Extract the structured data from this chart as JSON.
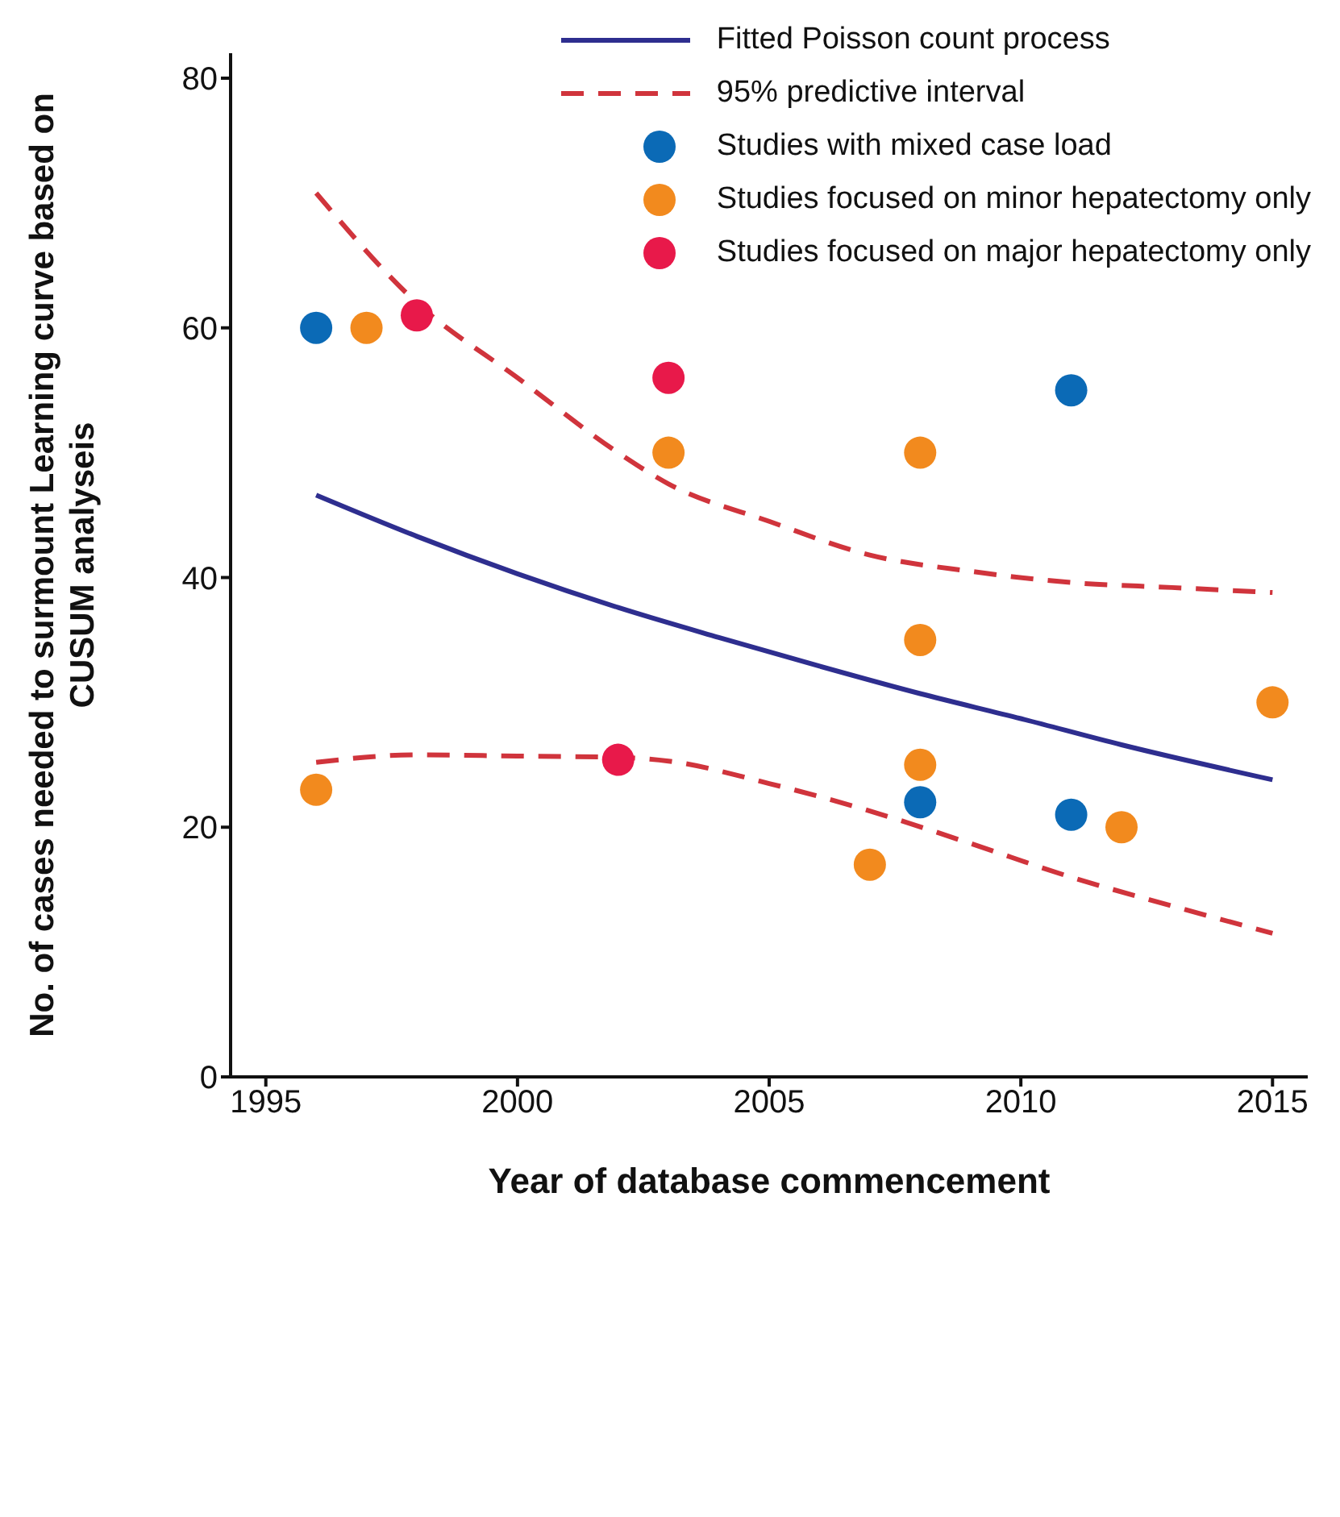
{
  "chart_data": {
    "type": "scatter",
    "xlabel": "Year of database commencement",
    "ylabel": "No. of cases needed to surmount Learning curve based on\nCUSUM analyseis",
    "xlim": [
      1994.3,
      2015.7
    ],
    "xticks": [
      1995,
      2000,
      2005,
      2010,
      2015
    ],
    "ylim": [
      0,
      82
    ],
    "yticks": [
      0,
      20,
      40,
      60,
      80
    ],
    "grid": false,
    "legend": "top right",
    "series": [
      {
        "name": "Fitted Poisson count process",
        "type": "line",
        "line_style": "solid",
        "marker": "none",
        "color": "#2e2e8f",
        "x": [
          1996,
          1998,
          2000,
          2002,
          2004,
          2006,
          2008,
          2010,
          2012,
          2015
        ],
        "values": [
          46.6,
          43.3,
          40.3,
          37.6,
          35.2,
          32.9,
          30.7,
          28.7,
          26.6,
          23.8
        ]
      },
      {
        "name": "95% predictive interval",
        "type": "line",
        "line_style": "dashed",
        "marker": "none",
        "color": "#d0343c",
        "x": [
          1996,
          1998,
          2000,
          2002,
          2003,
          2005,
          2007,
          2009,
          2011,
          2013,
          2015
        ],
        "values": [
          70.8,
          62,
          56,
          50,
          47.5,
          44.5,
          41.8,
          40.5,
          39.6,
          39.2,
          38.8
        ]
      },
      {
        "type": "line",
        "line_style": "dashed",
        "marker": "none",
        "color": "#d0343c",
        "x": [
          1996,
          1998,
          2000,
          2002,
          2003,
          2005,
          2007,
          2009,
          2011,
          2013,
          2015
        ],
        "values": [
          25.2,
          25.8,
          25.7,
          25.6,
          25.3,
          23.5,
          21.3,
          18.7,
          16,
          13.7,
          11.5
        ]
      },
      {
        "name": "Studies with mixed case load",
        "type": "scatter",
        "marker": "circle",
        "color": "#0b6ab6",
        "x": [
          1996,
          2011,
          2008,
          2011
        ],
        "values": [
          60,
          55,
          22,
          21
        ]
      },
      {
        "name": "Studies focused on minor hepatectomy only",
        "type": "scatter",
        "marker": "circle",
        "color": "#f28a1e",
        "x": [
          1997,
          2003,
          2008,
          2008,
          2008,
          1996,
          2007,
          2012,
          2015
        ],
        "values": [
          60,
          50,
          50,
          35,
          25,
          23,
          17,
          20,
          30
        ]
      },
      {
        "name": "Studies focused on major hepatectomy only",
        "type": "scatter",
        "marker": "circle",
        "color": "#e8194a",
        "x": [
          1998,
          2003,
          2002
        ],
        "values": [
          61,
          56,
          25.4
        ]
      }
    ]
  }
}
